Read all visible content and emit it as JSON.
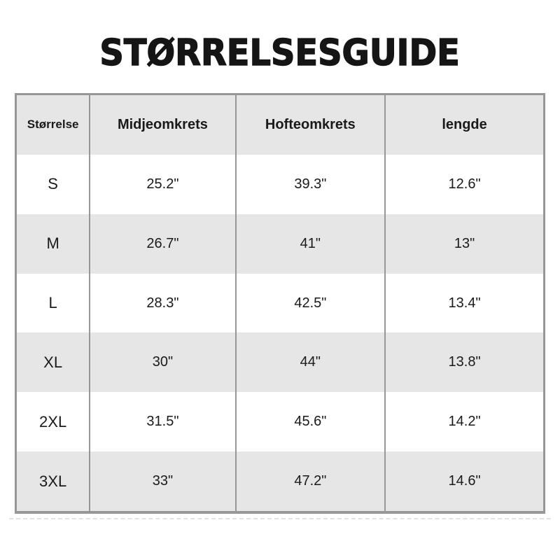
{
  "title": "STØRRELSESGUIDE",
  "table": {
    "headers": [
      "Størrelse",
      "Midjeomkrets",
      "Hofteomkrets",
      "lengde"
    ],
    "rows": [
      {
        "size": "S",
        "values": [
          "25.2\"",
          "39.3\"",
          "12.6\""
        ]
      },
      {
        "size": "M",
        "values": [
          "26.7\"",
          "41\"",
          "13\""
        ]
      },
      {
        "size": "L",
        "values": [
          "28.3\"",
          "42.5\"",
          "13.4\""
        ]
      },
      {
        "size": "XL",
        "values": [
          "30\"",
          "44\"",
          "13.8\""
        ]
      },
      {
        "size": "2XL",
        "values": [
          "31.5\"",
          "45.6\"",
          "14.2\""
        ]
      },
      {
        "size": "3XL",
        "values": [
          "33\"",
          "47.2\"",
          "14.6\""
        ]
      }
    ]
  },
  "colors": {
    "background": "#ffffff",
    "shaded_row": "#e6e6e6",
    "border": "#979797",
    "text": "#1a1a1a",
    "dashed_rule": "#e2e2e2"
  }
}
